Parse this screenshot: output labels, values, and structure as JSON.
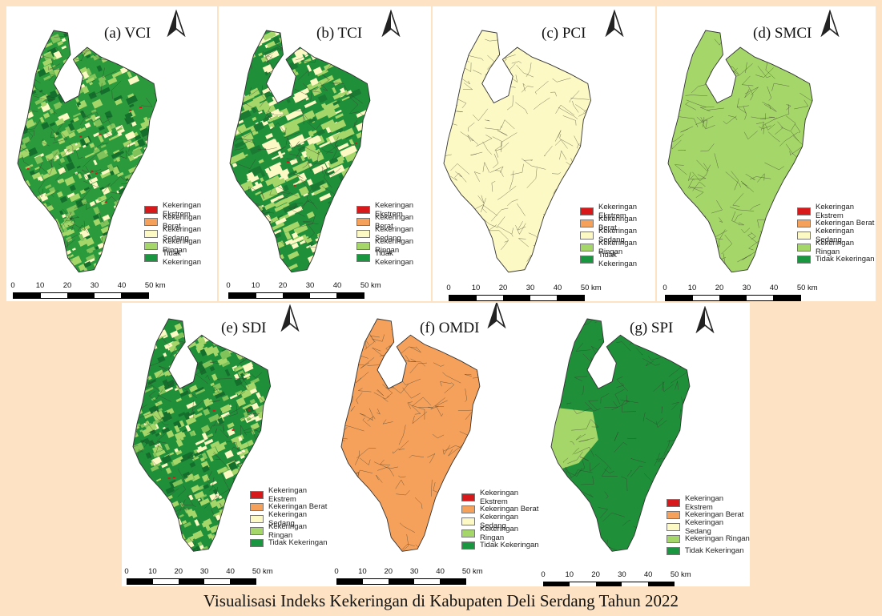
{
  "legend_labels": [
    "Kekeringan Ekstrem",
    "Kekeringan Berat",
    "Kekeringan Sedang",
    "Kekeringan Ringan",
    "Tidak Kekeringan"
  ],
  "legend_colors": [
    "#d7191c",
    "#f5a15c",
    "#fdf9c4",
    "#a4d66a",
    "#1a9641"
  ],
  "scale_labels": [
    "0",
    "10",
    "20",
    "30",
    "40",
    "50 km"
  ],
  "panels": [
    {
      "title": "(a) VCI",
      "base_color": "#2a9a3c",
      "pattern": "mixed"
    },
    {
      "title": "(b) TCI",
      "base_color": "#1f8f3a",
      "pattern": "patchy"
    },
    {
      "title": "(c) PCI",
      "base_color": "#fdf9c4",
      "pattern": "uniform"
    },
    {
      "title": "(d) SMCI",
      "base_color": "#a4d66a",
      "pattern": "uniform"
    },
    {
      "title": "(e) SDI",
      "base_color": "#1f8f3a",
      "pattern": "mixed"
    },
    {
      "title": "(f) OMDI",
      "base_color": "#f5a15c",
      "pattern": "uniform"
    },
    {
      "title": "(g) SPI",
      "base_color": "#1f8f3a",
      "pattern": "spi"
    }
  ],
  "caption": "Visualisasi Indeks Kekeringan di Kabupaten Deli Serdang Tahun 2022"
}
